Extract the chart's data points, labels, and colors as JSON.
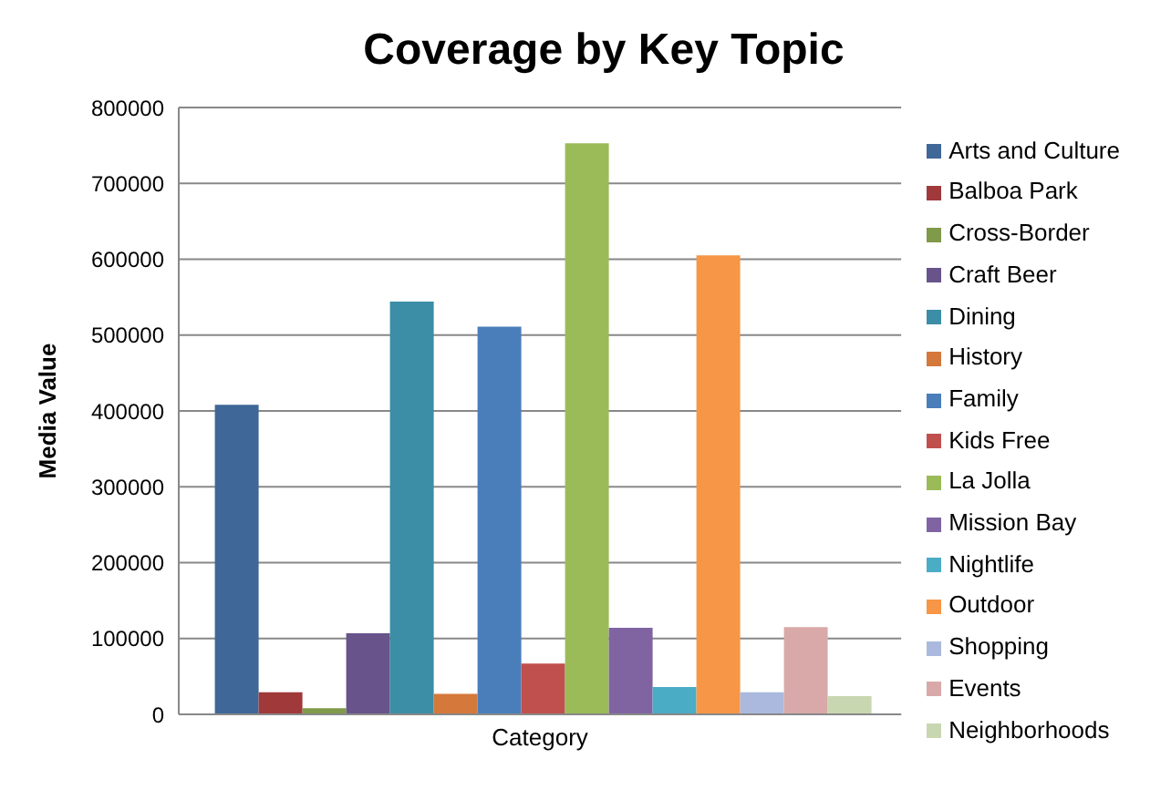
{
  "chart_data": {
    "type": "bar",
    "title": "Coverage by Key Topic",
    "xlabel": null,
    "ylabel": "Media Value",
    "categories": [
      "Category"
    ],
    "series": [
      {
        "name": "Arts and Culture",
        "color": "#3f6797",
        "values": [
          408000
        ]
      },
      {
        "name": "Balboa Park",
        "color": "#a0393a",
        "values": [
          29000
        ]
      },
      {
        "name": "Cross-Border",
        "color": "#7f9a48",
        "values": [
          8000
        ]
      },
      {
        "name": "Craft Beer",
        "color": "#68538a",
        "values": [
          107000
        ]
      },
      {
        "name": "Dining",
        "color": "#3b8ea5",
        "values": [
          544000
        ]
      },
      {
        "name": "History",
        "color": "#d5783b",
        "values": [
          27000
        ]
      },
      {
        "name": "Family",
        "color": "#4a7ebb",
        "values": [
          511000
        ]
      },
      {
        "name": "Kids Free",
        "color": "#c0504d",
        "values": [
          67000
        ]
      },
      {
        "name": "La Jolla",
        "color": "#9bbb59",
        "values": [
          753000
        ]
      },
      {
        "name": "Mission Bay",
        "color": "#8064a2",
        "values": [
          114000
        ]
      },
      {
        "name": "Nightlife",
        "color": "#4bacc6",
        "values": [
          36000
        ]
      },
      {
        "name": "Outdoor",
        "color": "#f79646",
        "values": [
          605000
        ]
      },
      {
        "name": "Shopping",
        "color": "#aab9dd",
        "values": [
          29000
        ]
      },
      {
        "name": "Events",
        "color": "#d9a9a9",
        "values": [
          115000
        ]
      },
      {
        "name": "Neighborhoods",
        "color": "#c9d7b0",
        "values": [
          24000
        ]
      }
    ],
    "ylim": [
      0,
      800000
    ],
    "yticks": [
      0,
      100000,
      200000,
      300000,
      400000,
      500000,
      600000,
      700000,
      800000
    ],
    "grid": "y",
    "legend": "right"
  }
}
